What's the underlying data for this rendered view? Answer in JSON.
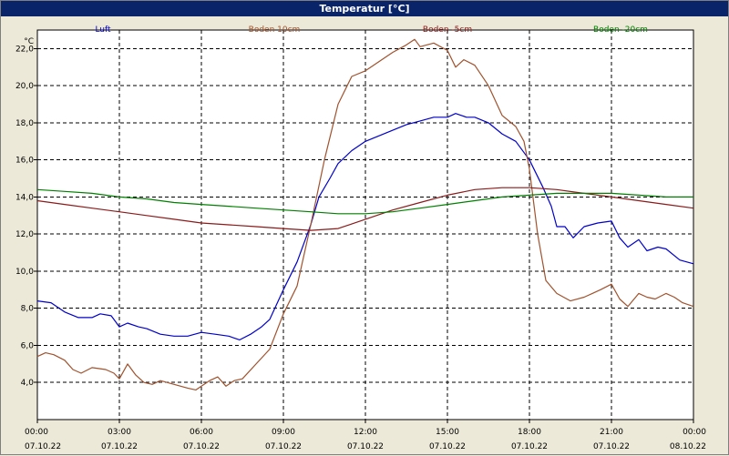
{
  "window": {
    "title": "Temperatur [°C]"
  },
  "chart_data": {
    "type": "line",
    "title": "Temperatur [°C]",
    "ylabel": "°C",
    "ylim": [
      2.0,
      23.0
    ],
    "yticks": [
      4.0,
      6.0,
      8.0,
      10.0,
      12.0,
      14.0,
      16.0,
      18.0,
      20.0,
      22.0
    ],
    "ytick_labels": [
      "4,0",
      "6,0",
      "8,0",
      "10,0",
      "12,0",
      "14,0",
      "16,0",
      "18,0",
      "20,0",
      "22,0"
    ],
    "xlim": [
      0,
      24
    ],
    "xticks": [
      {
        "h": 0,
        "time": "00:00",
        "date": "07.10.22"
      },
      {
        "h": 3,
        "time": "03:00",
        "date": "07.10.22"
      },
      {
        "h": 6,
        "time": "06:00",
        "date": "07.10.22"
      },
      {
        "h": 9,
        "time": "09:00",
        "date": "07.10.22"
      },
      {
        "h": 12,
        "time": "12:00",
        "date": "07.10.22"
      },
      {
        "h": 15,
        "time": "15:00",
        "date": "07.10.22"
      },
      {
        "h": 18,
        "time": "18:00",
        "date": "07.10.22"
      },
      {
        "h": 21,
        "time": "21:00",
        "date": "07.10.22"
      },
      {
        "h": 24,
        "time": "00:00",
        "date": "08.10.22"
      }
    ],
    "grid": true,
    "legend_position": "top",
    "series": [
      {
        "name": "Luft",
        "color": "#0000cc",
        "points": [
          [
            0,
            8.4
          ],
          [
            0.5,
            8.3
          ],
          [
            1,
            7.8
          ],
          [
            1.5,
            7.5
          ],
          [
            2,
            7.5
          ],
          [
            2.3,
            7.7
          ],
          [
            2.7,
            7.6
          ],
          [
            3,
            7.0
          ],
          [
            3.3,
            7.2
          ],
          [
            3.7,
            7.0
          ],
          [
            4,
            6.9
          ],
          [
            4.5,
            6.6
          ],
          [
            5,
            6.5
          ],
          [
            5.5,
            6.5
          ],
          [
            6,
            6.7
          ],
          [
            6.5,
            6.6
          ],
          [
            7,
            6.5
          ],
          [
            7.4,
            6.3
          ],
          [
            7.8,
            6.6
          ],
          [
            8.2,
            7.0
          ],
          [
            8.5,
            7.4
          ],
          [
            9,
            9.0
          ],
          [
            9.5,
            10.5
          ],
          [
            10,
            12.5
          ],
          [
            10.3,
            14.0
          ],
          [
            10.7,
            15.0
          ],
          [
            11,
            15.8
          ],
          [
            11.5,
            16.5
          ],
          [
            12,
            17.0
          ],
          [
            12.5,
            17.3
          ],
          [
            13,
            17.6
          ],
          [
            13.5,
            17.9
          ],
          [
            14,
            18.1
          ],
          [
            14.5,
            18.3
          ],
          [
            15,
            18.3
          ],
          [
            15.3,
            18.5
          ],
          [
            15.7,
            18.3
          ],
          [
            16,
            18.3
          ],
          [
            16.5,
            18.0
          ],
          [
            17,
            17.4
          ],
          [
            17.5,
            17.0
          ],
          [
            18,
            16.0
          ],
          [
            18.5,
            14.5
          ],
          [
            18.8,
            13.5
          ],
          [
            19,
            12.4
          ],
          [
            19.3,
            12.4
          ],
          [
            19.6,
            11.8
          ],
          [
            20,
            12.4
          ],
          [
            20.5,
            12.6
          ],
          [
            21,
            12.7
          ],
          [
            21.3,
            11.8
          ],
          [
            21.6,
            11.3
          ],
          [
            22,
            11.7
          ],
          [
            22.3,
            11.1
          ],
          [
            22.7,
            11.3
          ],
          [
            23,
            11.2
          ],
          [
            23.5,
            10.6
          ],
          [
            24,
            10.4
          ]
        ]
      },
      {
        "name": "Boden 10cm",
        "color": "#a0522d",
        "points": [
          [
            0,
            5.4
          ],
          [
            0.3,
            5.6
          ],
          [
            0.6,
            5.5
          ],
          [
            1,
            5.2
          ],
          [
            1.3,
            4.7
          ],
          [
            1.6,
            4.5
          ],
          [
            2,
            4.8
          ],
          [
            2.5,
            4.7
          ],
          [
            2.8,
            4.5
          ],
          [
            3,
            4.2
          ],
          [
            3.3,
            5.0
          ],
          [
            3.6,
            4.4
          ],
          [
            3.9,
            4.0
          ],
          [
            4.2,
            3.9
          ],
          [
            4.5,
            4.1
          ],
          [
            5,
            3.9
          ],
          [
            5.5,
            3.7
          ],
          [
            5.8,
            3.6
          ],
          [
            6,
            3.8
          ],
          [
            6.3,
            4.1
          ],
          [
            6.6,
            4.3
          ],
          [
            6.9,
            3.8
          ],
          [
            7.2,
            4.1
          ],
          [
            7.5,
            4.2
          ],
          [
            8,
            5.0
          ],
          [
            8.5,
            5.8
          ],
          [
            9,
            7.7
          ],
          [
            9.5,
            9.2
          ],
          [
            10,
            12.5
          ],
          [
            10.5,
            16.0
          ],
          [
            11,
            19.0
          ],
          [
            11.5,
            20.5
          ],
          [
            12,
            20.8
          ],
          [
            12.5,
            21.3
          ],
          [
            13,
            21.8
          ],
          [
            13.5,
            22.2
          ],
          [
            13.8,
            22.5
          ],
          [
            14,
            22.1
          ],
          [
            14.5,
            22.3
          ],
          [
            15,
            21.9
          ],
          [
            15.3,
            21.0
          ],
          [
            15.6,
            21.4
          ],
          [
            16,
            21.1
          ],
          [
            16.5,
            20.0
          ],
          [
            17,
            18.4
          ],
          [
            17.5,
            17.8
          ],
          [
            17.8,
            17.0
          ],
          [
            18,
            15.5
          ],
          [
            18.3,
            12.0
          ],
          [
            18.6,
            9.5
          ],
          [
            19,
            8.8
          ],
          [
            19.5,
            8.4
          ],
          [
            20,
            8.6
          ],
          [
            20.3,
            8.8
          ],
          [
            20.6,
            9.0
          ],
          [
            21,
            9.3
          ],
          [
            21.3,
            8.5
          ],
          [
            21.6,
            8.1
          ],
          [
            22,
            8.8
          ],
          [
            22.3,
            8.6
          ],
          [
            22.6,
            8.5
          ],
          [
            23,
            8.8
          ],
          [
            23.3,
            8.6
          ],
          [
            23.6,
            8.3
          ],
          [
            24,
            8.1
          ]
        ]
      },
      {
        "name": "Boden -5cm",
        "color": "#8b1a1a",
        "points": [
          [
            0,
            13.8
          ],
          [
            1,
            13.6
          ],
          [
            2,
            13.4
          ],
          [
            3,
            13.2
          ],
          [
            4,
            13.0
          ],
          [
            5,
            12.8
          ],
          [
            6,
            12.6
          ],
          [
            7,
            12.5
          ],
          [
            8,
            12.4
          ],
          [
            9,
            12.3
          ],
          [
            9.5,
            12.25
          ],
          [
            10,
            12.2
          ],
          [
            11,
            12.3
          ],
          [
            12,
            12.8
          ],
          [
            13,
            13.3
          ],
          [
            14,
            13.7
          ],
          [
            15,
            14.1
          ],
          [
            16,
            14.4
          ],
          [
            17,
            14.5
          ],
          [
            18,
            14.5
          ],
          [
            19,
            14.4
          ],
          [
            20,
            14.2
          ],
          [
            21,
            14.0
          ],
          [
            22,
            13.8
          ],
          [
            23,
            13.6
          ],
          [
            24,
            13.4
          ]
        ]
      },
      {
        "name": "Boden -20cm",
        "color": "#008000",
        "points": [
          [
            0,
            14.4
          ],
          [
            1,
            14.3
          ],
          [
            2,
            14.2
          ],
          [
            3,
            14.0
          ],
          [
            4,
            13.9
          ],
          [
            5,
            13.7
          ],
          [
            6,
            13.6
          ],
          [
            7,
            13.5
          ],
          [
            8,
            13.4
          ],
          [
            9,
            13.3
          ],
          [
            10,
            13.2
          ],
          [
            11,
            13.1
          ],
          [
            12,
            13.1
          ],
          [
            13,
            13.2
          ],
          [
            14,
            13.4
          ],
          [
            15,
            13.6
          ],
          [
            16,
            13.8
          ],
          [
            17,
            14.0
          ],
          [
            18,
            14.1
          ],
          [
            19,
            14.2
          ],
          [
            20,
            14.2
          ],
          [
            21,
            14.2
          ],
          [
            22,
            14.1
          ],
          [
            23,
            14.0
          ],
          [
            24,
            14.0
          ]
        ]
      }
    ]
  }
}
